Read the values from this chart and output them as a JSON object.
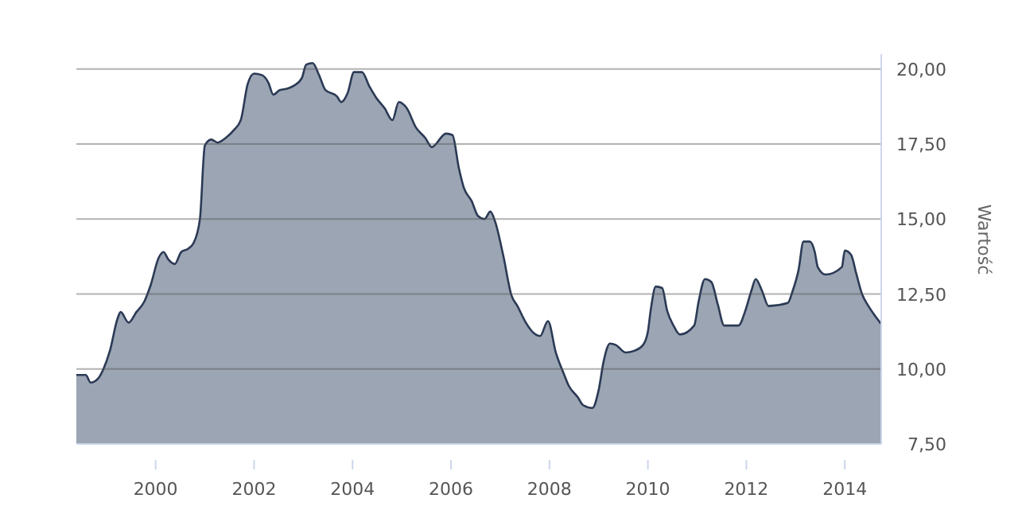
{
  "chart_data": {
    "type": "area",
    "ylabel": "Wartość",
    "x": [
      1998.39,
      1998.58,
      1998.68,
      1998.84,
      1998.94,
      1999.07,
      1999.23,
      1999.29,
      1999.45,
      1999.61,
      1999.77,
      1999.9,
      2000.06,
      2000.16,
      2000.26,
      2000.39,
      2000.52,
      2000.65,
      2000.77,
      2000.9,
      2001.0,
      2001.13,
      2001.26,
      2001.42,
      2001.58,
      2001.73,
      2001.87,
      2002.0,
      2002.16,
      2002.29,
      2002.39,
      2002.52,
      2002.68,
      2002.81,
      2002.97,
      2003.06,
      2003.19,
      2003.32,
      2003.45,
      2003.68,
      2003.77,
      2003.9,
      2004.03,
      2004.19,
      2004.35,
      2004.48,
      2004.65,
      2004.81,
      2004.94,
      2005.1,
      2005.29,
      2005.48,
      2005.61,
      2005.9,
      2006.03,
      2006.16,
      2006.26,
      2006.42,
      2006.55,
      2006.68,
      2006.8,
      2006.9,
      2007.06,
      2007.23,
      2007.35,
      2007.52,
      2007.68,
      2007.81,
      2007.97,
      2008.13,
      2008.29,
      2008.39,
      2008.58,
      2008.68,
      2008.87,
      2009.0,
      2009.1,
      2009.23,
      2009.35,
      2009.55,
      2009.71,
      2009.9,
      2010.0,
      2010.06,
      2010.16,
      2010.29,
      2010.39,
      2010.52,
      2010.65,
      2010.94,
      2011.03,
      2011.16,
      2011.29,
      2011.42,
      2011.55,
      2011.84,
      2011.97,
      2012.1,
      2012.19,
      2012.32,
      2012.45,
      2012.84,
      2012.94,
      2013.06,
      2013.16,
      2013.29,
      2013.39,
      2013.45,
      2013.61,
      2013.94,
      2014.0,
      2014.13,
      2014.23,
      2014.35,
      2014.48,
      2014.58,
      2014.74
    ],
    "series": [
      {
        "color": "#9ba5b3",
        "values": [
          9.8,
          9.8,
          9.55,
          9.7,
          10.0,
          10.6,
          11.7,
          11.9,
          11.55,
          11.9,
          12.25,
          12.8,
          13.7,
          13.9,
          13.65,
          13.5,
          13.9,
          14.0,
          14.2,
          15.0,
          17.45,
          17.65,
          17.55,
          17.7,
          17.95,
          18.3,
          19.5,
          19.85,
          19.8,
          19.55,
          19.15,
          19.3,
          19.35,
          19.45,
          19.7,
          20.15,
          20.2,
          19.8,
          19.3,
          19.1,
          18.9,
          19.2,
          19.9,
          19.9,
          19.4,
          19.05,
          18.7,
          18.3,
          18.9,
          18.7,
          18.05,
          17.7,
          17.4,
          17.85,
          17.8,
          16.7,
          16.05,
          15.6,
          15.1,
          15.0,
          15.25,
          14.9,
          13.8,
          12.45,
          12.1,
          11.55,
          11.2,
          11.1,
          11.6,
          10.55,
          9.85,
          9.45,
          9.05,
          8.8,
          8.7,
          9.3,
          10.25,
          10.85,
          10.8,
          10.55,
          10.6,
          10.8,
          11.25,
          12.0,
          12.75,
          12.7,
          11.95,
          11.45,
          11.15,
          11.45,
          12.25,
          13.0,
          12.9,
          12.15,
          11.45,
          11.45,
          11.9,
          12.6,
          13.0,
          12.6,
          12.1,
          12.2,
          12.6,
          13.3,
          14.25,
          14.25,
          13.9,
          13.4,
          13.15,
          13.4,
          13.95,
          13.8,
          13.2,
          12.5,
          12.1,
          11.85,
          11.5
        ]
      }
    ],
    "xlim": [
      1998.39,
      2014.74
    ],
    "xticks": [
      2000,
      2002,
      2004,
      2006,
      2008,
      2010,
      2012,
      2014
    ],
    "ylim": [
      7.5,
      20.5
    ],
    "yticks": [
      {
        "value": 7.5,
        "label": "7,50"
      },
      {
        "value": 10,
        "label": "10,00"
      },
      {
        "value": 12.5,
        "label": "12,50"
      },
      {
        "value": 15,
        "label": "15,00"
      },
      {
        "value": 17.5,
        "label": "17,50"
      },
      {
        "value": 20,
        "label": "20,00"
      }
    ],
    "grid": "y"
  }
}
